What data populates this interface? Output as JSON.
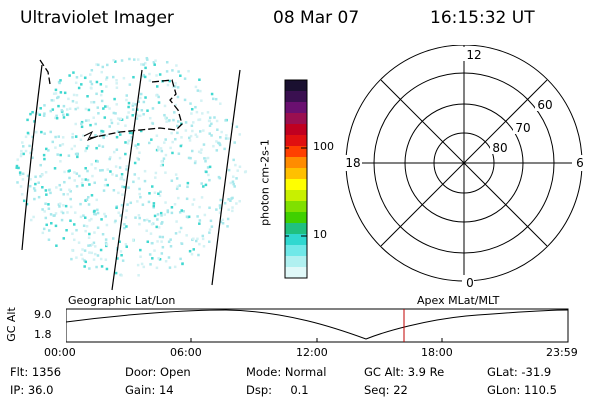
{
  "header": {
    "instrument": "Ultraviolet Imager",
    "date": "08 Mar 07",
    "time": "16:15:32 UT"
  },
  "colorbar": {
    "unit_label": "photon cm-2s-1",
    "ticks": [
      {
        "value": 100,
        "label": "100"
      },
      {
        "value": 10,
        "label": "10"
      }
    ],
    "colors_top_to_bottom": [
      "#1a1030",
      "#3a1050",
      "#6a1070",
      "#9a0f50",
      "#c00020",
      "#e01010",
      "#ff4000",
      "#ff8c00",
      "#ffc000",
      "#ffff00",
      "#c8f000",
      "#80e000",
      "#40d000",
      "#20c080",
      "#30d8d0",
      "#70e8e8",
      "#b0f0f0",
      "#e0f8f8"
    ]
  },
  "polar_plot": {
    "lat_labels": [
      "60",
      "70",
      "80"
    ],
    "mlt_labels": {
      "top": "12",
      "bottom": "0",
      "left": "18",
      "right": "6"
    }
  },
  "timeline": {
    "left_label": "Geographic Lat/Lon",
    "right_label": "Apex MLat/MLT",
    "axis_title": "GC Alt",
    "y_ticks": [
      "9.0",
      "1.8"
    ],
    "time_ticks": [
      "00:00",
      "06:00",
      "12:00",
      "18:00",
      "23:59"
    ],
    "marker_color": "#c00000"
  },
  "info": {
    "row1": [
      {
        "key": "Flt:",
        "value": "1356"
      },
      {
        "key": "Door:",
        "value": "Open"
      },
      {
        "key": "Mode:",
        "value": "Normal"
      },
      {
        "key": "GC Alt:",
        "value": "3.9 Re"
      },
      {
        "key": "GLat:",
        "value": "-31.9"
      }
    ],
    "row2": [
      {
        "key": "IP:",
        "value": "36.0"
      },
      {
        "key": "Gain:",
        "value": "14"
      },
      {
        "key": "Dsp:",
        "value": "0.1"
      },
      {
        "key": "Seq:",
        "value": "22"
      },
      {
        "key": "GLon:",
        "value": "110.5"
      }
    ]
  }
}
